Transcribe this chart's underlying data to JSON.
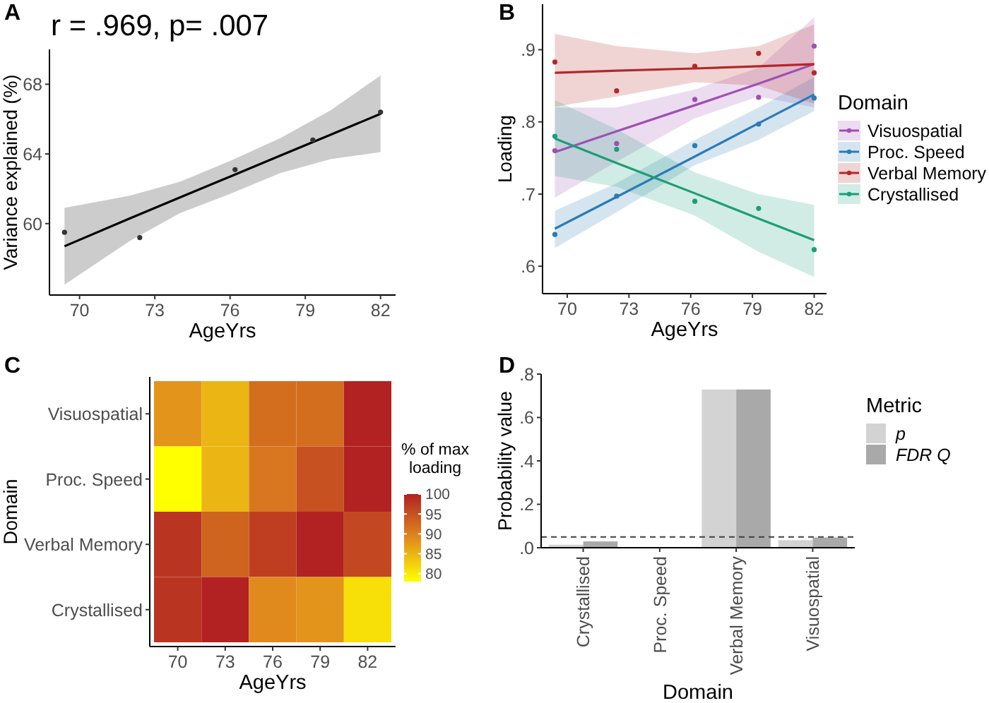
{
  "chart_data": [
    {
      "type": "scatter",
      "title": "r = .969, p= .007",
      "xlabel": "AgeYrs",
      "ylabel": "Variance explained (%)",
      "annotations": [
        "A"
      ],
      "xlim": [
        68.8,
        82.6
      ],
      "ylim": [
        55.9,
        70
      ],
      "xticks": [
        70,
        73,
        76,
        79,
        82
      ],
      "yticks": [
        60,
        64,
        68
      ],
      "series": [
        {
          "type": "scatter",
          "marker": "circle",
          "color": "#333333",
          "x": [
            69.4,
            72.4,
            76.2,
            79.3,
            82.0
          ],
          "values": [
            59.5,
            59.2,
            63.1,
            64.8,
            66.4
          ]
        },
        {
          "type": "line",
          "color": "#000000",
          "x": [
            69.4,
            72,
            74,
            76,
            78,
            80,
            82
          ],
          "values": [
            58.7,
            60.3,
            61.5,
            62.7,
            63.9,
            65.1,
            66.3
          ],
          "lower": [
            56.5,
            59.0,
            60.6,
            61.7,
            62.9,
            63.7,
            64.1
          ],
          "upper": [
            60.9,
            61.6,
            62.4,
            63.6,
            64.9,
            66.5,
            68.5
          ]
        }
      ]
    },
    {
      "type": "line",
      "xlabel": "AgeYrs",
      "ylabel": "Loading",
      "annotations": [
        "B"
      ],
      "legend": "right",
      "legend_title": "Domain",
      "xlim": [
        68.8,
        82.6
      ],
      "ylim": [
        0.562,
        0.963
      ],
      "xticks": [
        70,
        73,
        76,
        79,
        82
      ],
      "yticks": [
        {
          "value": 0.6,
          "label": ".6"
        },
        {
          "value": 0.7,
          "label": ".7"
        },
        {
          "value": 0.8,
          "label": ".8"
        },
        {
          "value": 0.9,
          "label": ".9"
        }
      ],
      "series": [
        {
          "type": "line",
          "name": "Visuospatial",
          "color": "#9e4fb5",
          "x": [
            69.4,
            72.4,
            76.2,
            79.3,
            82.0
          ],
          "values": [
            0.758,
            0.787,
            0.823,
            0.853,
            0.88
          ],
          "lower": [
            0.695,
            0.745,
            0.805,
            0.835,
            0.82
          ],
          "upper": [
            0.82,
            0.82,
            0.845,
            0.875,
            0.945
          ]
        },
        {
          "type": "line",
          "name": "Proc. Speed",
          "color": "#2c7bb6",
          "x": [
            69.4,
            72.4,
            76.2,
            79.3,
            82.0
          ],
          "values": [
            0.652,
            0.696,
            0.752,
            0.798,
            0.838
          ],
          "lower": [
            0.625,
            0.675,
            0.74,
            0.775,
            0.815
          ],
          "upper": [
            0.677,
            0.715,
            0.775,
            0.82,
            0.862
          ]
        },
        {
          "type": "line",
          "name": "Verbal Memory",
          "color": "#b2282a",
          "x": [
            69.4,
            72.4,
            76.2,
            79.3,
            82.0
          ],
          "values": [
            0.868,
            0.871,
            0.874,
            0.877,
            0.88
          ],
          "lower": [
            0.821,
            0.835,
            0.855,
            0.85,
            0.825
          ],
          "upper": [
            0.922,
            0.905,
            0.895,
            0.905,
            0.935
          ]
        },
        {
          "type": "line",
          "name": "Crystallised",
          "color": "#1b9e77",
          "x": [
            69.4,
            72.4,
            76.2,
            79.3,
            82.0
          ],
          "values": [
            0.777,
            0.743,
            0.701,
            0.666,
            0.636
          ],
          "lower": [
            0.725,
            0.71,
            0.67,
            0.62,
            0.585
          ],
          "upper": [
            0.83,
            0.79,
            0.73,
            0.7,
            0.685
          ]
        },
        {
          "type": "scatter",
          "marker": "circle",
          "color": "#9e4fb5",
          "x": [
            69.4,
            72.4,
            76.2,
            79.3,
            82.0
          ],
          "values": [
            0.76,
            0.77,
            0.831,
            0.834,
            0.905
          ]
        },
        {
          "type": "scatter",
          "marker": "circle",
          "color": "#2c7bb6",
          "x": [
            69.4,
            72.4,
            76.2,
            79.3,
            82.0
          ],
          "values": [
            0.644,
            0.697,
            0.767,
            0.797,
            0.833
          ]
        },
        {
          "type": "scatter",
          "marker": "circle",
          "color": "#b2282a",
          "x": [
            69.4,
            72.4,
            76.2,
            79.3,
            82.0
          ],
          "values": [
            0.883,
            0.843,
            0.877,
            0.895,
            0.868
          ]
        },
        {
          "type": "scatter",
          "marker": "circle",
          "color": "#1b9e77",
          "x": [
            69.4,
            72.4,
            76.2,
            79.3,
            82.0
          ],
          "values": [
            0.78,
            0.762,
            0.69,
            0.68,
            0.623
          ]
        }
      ]
    },
    {
      "type": "heatmap",
      "xlabel": "AgeYrs",
      "ylabel": "Domain",
      "clabel": "% of max loading",
      "annotations": [
        "C"
      ],
      "categories": [
        "70",
        "73",
        "76",
        "79",
        "82"
      ],
      "y_categories": [
        "Visuospatial",
        "Proc. Speed",
        "Verbal Memory",
        "Crystallised"
      ],
      "clim": [
        78,
        100
      ],
      "cticks": [
        80,
        85,
        90,
        95,
        100
      ],
      "cells": [
        [
          88,
          85,
          92,
          92,
          100
        ],
        [
          78,
          85,
          91,
          95,
          100
        ],
        [
          98,
          93,
          97,
          100,
          96
        ],
        [
          98,
          100,
          89,
          88,
          81
        ]
      ]
    },
    {
      "type": "bar",
      "xlabel": "Domain",
      "ylabel": "Probability value",
      "annotations": [
        "D"
      ],
      "legend": "top right",
      "legend_title": "Metric",
      "categories": [
        "Crystallised",
        "Proc. Speed",
        "Verbal Memory",
        "Visuospatial"
      ],
      "ylim": [
        0,
        0.8
      ],
      "yticks": [
        {
          "value": 0,
          "label": ".0"
        },
        {
          "value": 0.2,
          "label": ".2"
        },
        {
          "value": 0.4,
          "label": ".4"
        },
        {
          "value": 0.6,
          "label": ".6"
        },
        {
          "value": 0.8,
          "label": ".8"
        }
      ],
      "ref_lines": [
        {
          "axis": "y",
          "value": 0.05,
          "line_style": "dashed",
          "color": "#404040"
        }
      ],
      "series": [
        {
          "name": "p",
          "color": "#d3d3d3",
          "values": [
            0.014,
            null,
            0.729,
            0.035
          ]
        },
        {
          "name": "FDR Q",
          "color": "#a9a9a9",
          "values": [
            0.029,
            null,
            0.729,
            0.047
          ]
        }
      ]
    }
  ]
}
